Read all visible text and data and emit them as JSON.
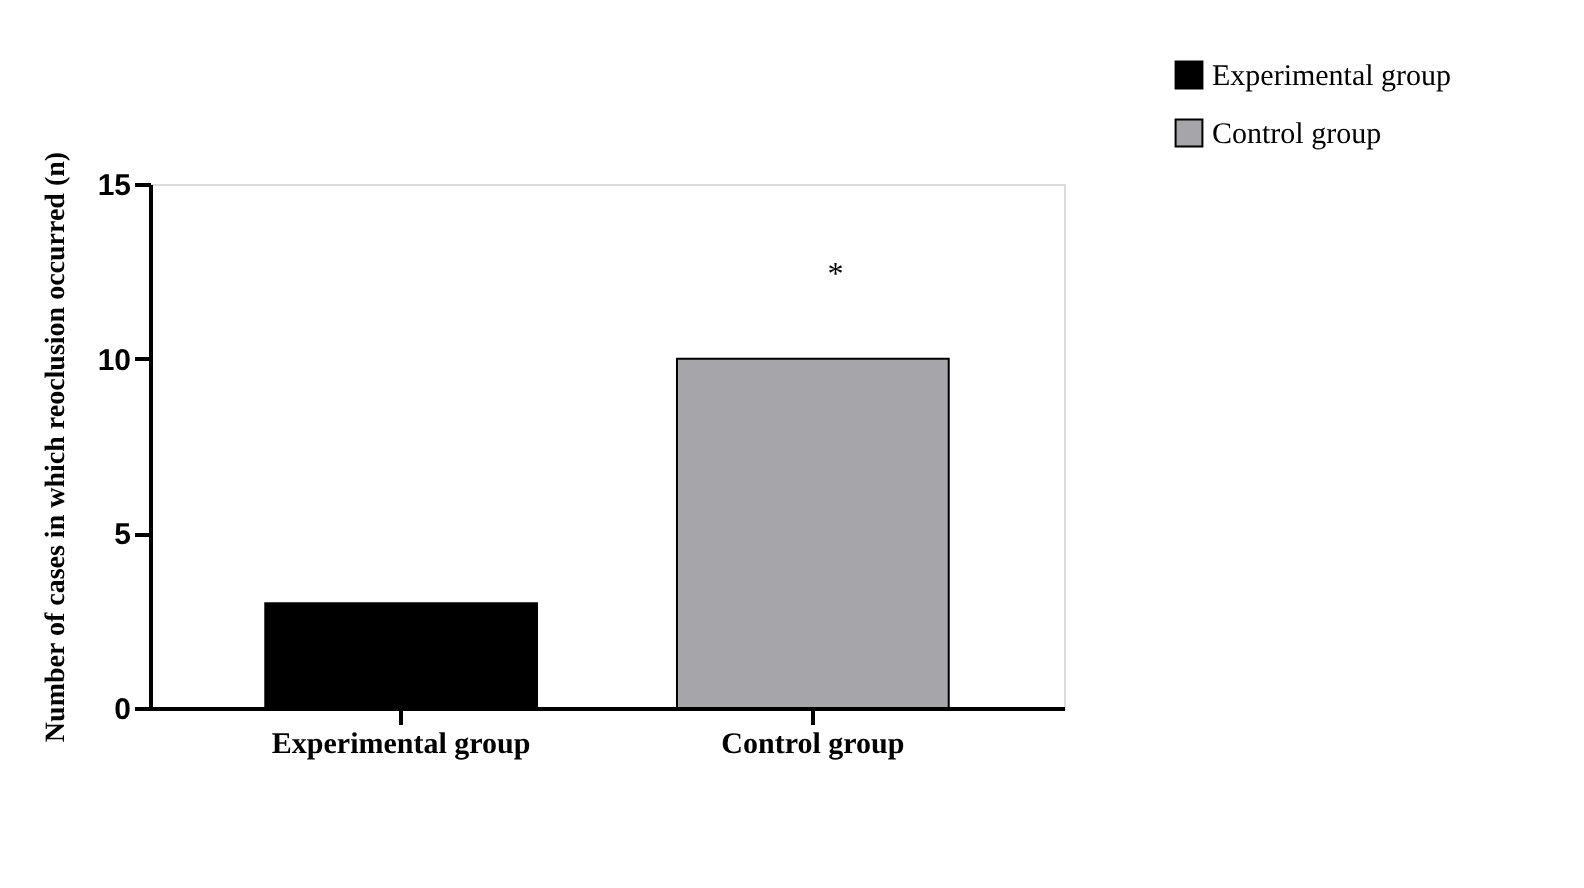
{
  "chart_data": {
    "type": "bar",
    "ylabel": "Number of cases in which reoclusion occurred (n)",
    "categories": [
      "Experimental group",
      "Control group"
    ],
    "series": [
      {
        "name": "Experimental group",
        "color": "#000000",
        "values": [
          3,
          null
        ]
      },
      {
        "name": "Control group",
        "color": "#a5a5aa",
        "values": [
          null,
          10
        ]
      }
    ],
    "ylim": [
      0,
      15
    ],
    "yticks": [
      0,
      5,
      10,
      15
    ],
    "grid": false,
    "legend": "top right",
    "annotations": [
      "*"
    ]
  }
}
